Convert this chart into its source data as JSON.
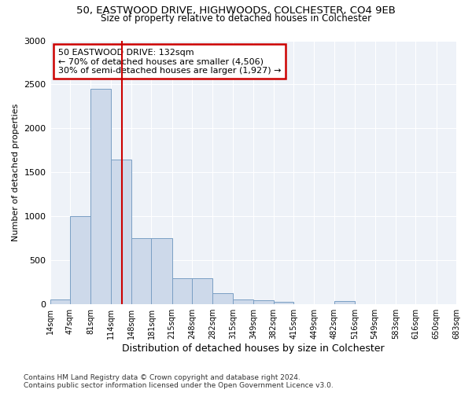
{
  "title1": "50, EASTWOOD DRIVE, HIGHWOODS, COLCHESTER, CO4 9EB",
  "title2": "Size of property relative to detached houses in Colchester",
  "xlabel": "Distribution of detached houses by size in Colchester",
  "ylabel": "Number of detached properties",
  "bar_color": "#cdd9ea",
  "bar_edge_color": "#7a9fc4",
  "bar_values": [
    55,
    1000,
    2450,
    1650,
    750,
    750,
    300,
    300,
    130,
    55,
    45,
    25,
    0,
    0,
    35,
    0,
    0,
    0,
    0,
    0
  ],
  "bin_edges": [
    14,
    47,
    81,
    114,
    148,
    181,
    215,
    248,
    282,
    315,
    349,
    382,
    415,
    449,
    482,
    516,
    549,
    583,
    616,
    650,
    683
  ],
  "tick_labels": [
    "14sqm",
    "47sqm",
    "81sqm",
    "114sqm",
    "148sqm",
    "181sqm",
    "215sqm",
    "248sqm",
    "282sqm",
    "315sqm",
    "349sqm",
    "382sqm",
    "415sqm",
    "449sqm",
    "482sqm",
    "516sqm",
    "549sqm",
    "583sqm",
    "616sqm",
    "650sqm",
    "683sqm"
  ],
  "vline_x": 132,
  "vline_color": "#cc0000",
  "annotation_text": "50 EASTWOOD DRIVE: 132sqm\n← 70% of detached houses are smaller (4,506)\n30% of semi-detached houses are larger (1,927) →",
  "annotation_box_color": "#cc0000",
  "ylim": [
    0,
    3000
  ],
  "yticks": [
    0,
    500,
    1000,
    1500,
    2000,
    2500,
    3000
  ],
  "footnote": "Contains HM Land Registry data © Crown copyright and database right 2024.\nContains public sector information licensed under the Open Government Licence v3.0.",
  "bg_color": "#ffffff",
  "plot_bg_color": "#eef2f8",
  "grid_color": "#ffffff",
  "title1_fontsize": 9.5,
  "title2_fontsize": 8.5
}
